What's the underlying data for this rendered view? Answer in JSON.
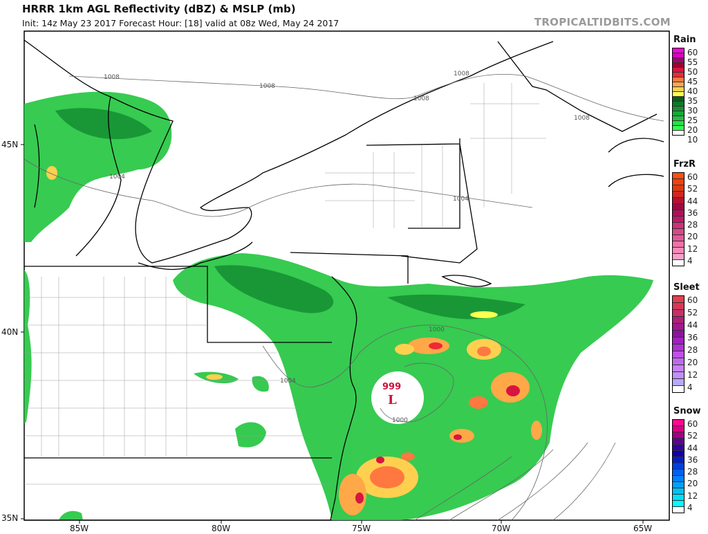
{
  "header": {
    "title": "HRRR 1km AGL Reflectivity (dBZ) & MSLP (mb)",
    "subtitle": "Init: 14z May 23 2017   Forecast Hour: [18]   valid at 08z Wed, May 24 2017",
    "watermark": "TROPICALTIDBITS.COM"
  },
  "axes": {
    "lat_labels": [
      "45N",
      "40N",
      "35N"
    ],
    "lon_labels": [
      "85W",
      "80W",
      "75W",
      "70W",
      "65W"
    ]
  },
  "isobars": {
    "labels": [
      "1008",
      "1008",
      "1008",
      "1008",
      "1008",
      "1004",
      "1004",
      "1004",
      "1000",
      "1000"
    ]
  },
  "low": {
    "pressure": "999",
    "symbol": "L",
    "color": "#d0103a"
  },
  "legends": [
    {
      "name": "Rain",
      "labels": [
        "60",
        "55",
        "50",
        "45",
        "40",
        "35",
        "30",
        "25",
        "20",
        "10"
      ],
      "colors": [
        "#ff00e0",
        "#d000c0",
        "#a8006e",
        "#a00030",
        "#d81440",
        "#f02838",
        "#ff7840",
        "#ffa848",
        "#ffd050",
        "#ffff50",
        "#0a5a20",
        "#0e7a28",
        "#129030",
        "#18a838",
        "#20c040",
        "#28e048",
        "#30ff50",
        "#ffffff"
      ]
    },
    {
      "name": "FrzR",
      "labels": [
        "60",
        "52",
        "44",
        "36",
        "28",
        "20",
        "12",
        "4"
      ],
      "colors": [
        "#ff5010",
        "#f04010",
        "#e03810",
        "#d02820",
        "#b81030",
        "#a00840",
        "#b01058",
        "#c01868",
        "#d03078",
        "#d84888",
        "#e05898",
        "#f070a8",
        "#f888b8",
        "#f8a0c8",
        "#ffffff"
      ]
    },
    {
      "name": "Sleet",
      "labels": [
        "60",
        "52",
        "44",
        "36",
        "28",
        "20",
        "12",
        "4"
      ],
      "colors": [
        "#e04050",
        "#d83858",
        "#c83068",
        "#b02078",
        "#a01890",
        "#9010a0",
        "#a020c0",
        "#b030d8",
        "#c050e8",
        "#c068f0",
        "#c880f8",
        "#c090fa",
        "#b8a8ff",
        "#ffffff"
      ]
    },
    {
      "name": "Snow",
      "labels": [
        "60",
        "52",
        "44",
        "36",
        "28",
        "20",
        "12",
        "4"
      ],
      "colors": [
        "#ff0890",
        "#d80080",
        "#a00080",
        "#600090",
        "#3000a0",
        "#1000a8",
        "#0020c0",
        "#0040d8",
        "#0060f0",
        "#0080ff",
        "#00a0ff",
        "#00c0ff",
        "#00e0ff",
        "#00ffff",
        "#ffffff"
      ]
    }
  ]
}
